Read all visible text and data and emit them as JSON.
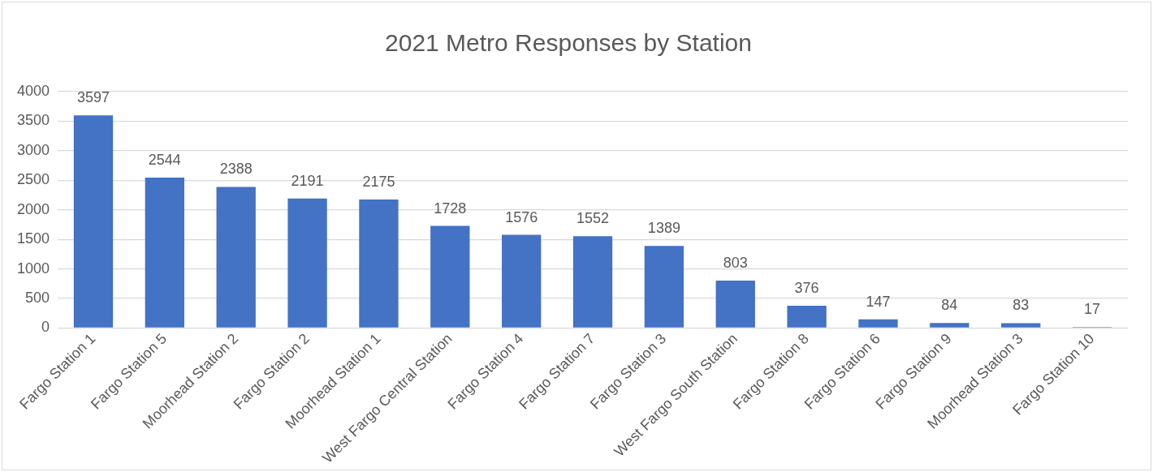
{
  "chart_data": {
    "type": "bar",
    "title": "2021 Metro Responses by Station",
    "categories": [
      "Fargo Station 1",
      "Fargo Station 5",
      "Moorhead Station 2",
      "Fargo Station 2",
      "Moorhead Station 1",
      "West Fargo Central Station",
      "Fargo Station 4",
      "Fargo Station 7",
      "Fargo Station 3",
      "West Fargo South Station",
      "Fargo Station 8",
      "Fargo Station 6",
      "Fargo Station 9",
      "Moorhead Station 3",
      "Fargo Station 10"
    ],
    "values": [
      3597,
      2544,
      2388,
      2191,
      2175,
      1728,
      1576,
      1552,
      1389,
      803,
      376,
      147,
      84,
      83,
      17
    ],
    "color": "#4472c4",
    "ylim": [
      0,
      4000
    ],
    "yticks": [
      0,
      500,
      1000,
      1500,
      2000,
      2500,
      3000,
      3500,
      4000
    ],
    "grid": "y",
    "legend": false,
    "data_labels": true
  }
}
